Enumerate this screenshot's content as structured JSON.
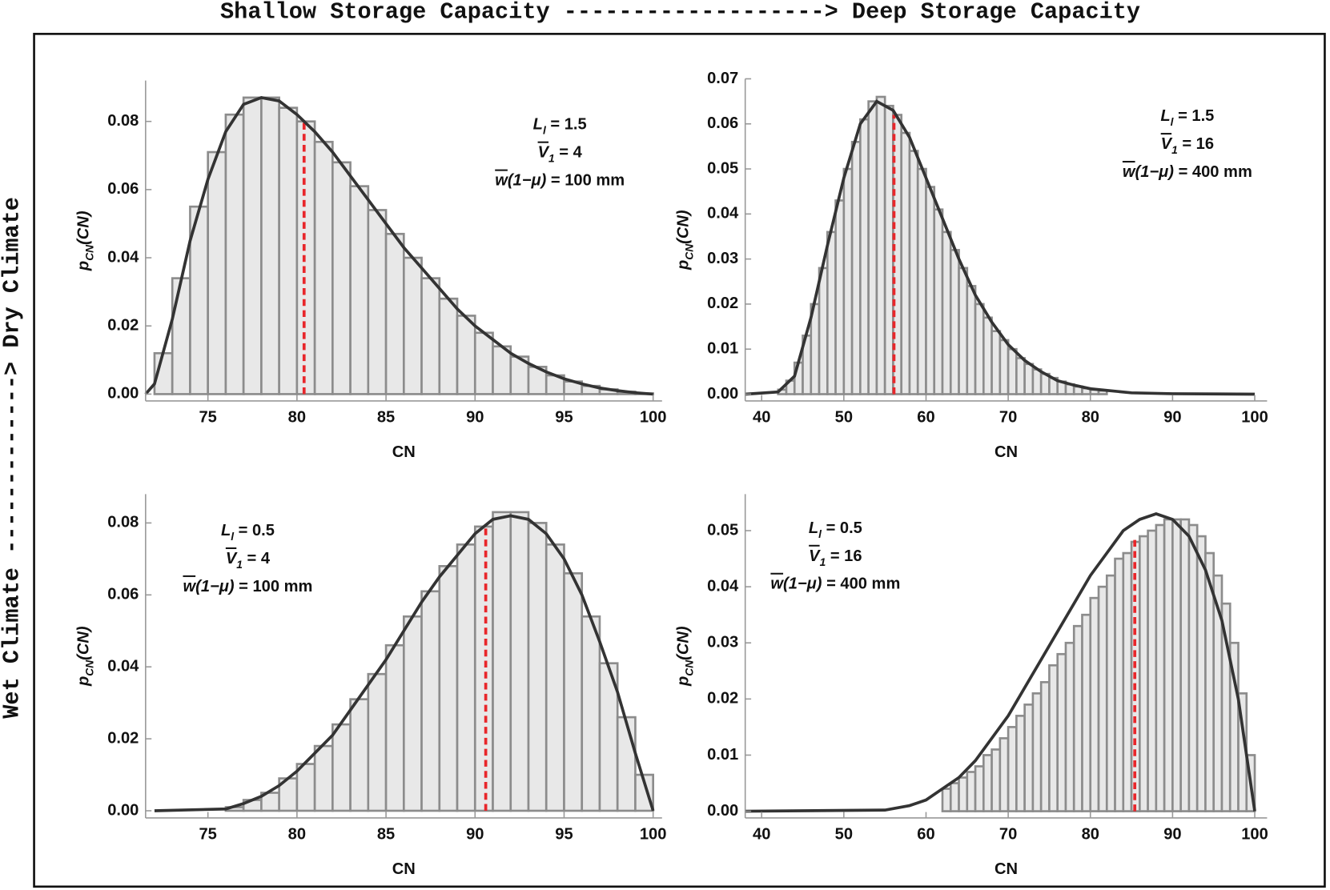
{
  "header": "Shallow Storage Capacity -------------------> Deep Storage Capacity",
  "side_label": "Wet Climate -------------> Dry Climate",
  "chart_data": [
    {
      "type": "histogram",
      "xlabel": "CN",
      "ylabel": [
        {
          "text": "p",
          "style": "i"
        },
        {
          "text": "CN",
          "style": "sub"
        },
        {
          "text": "(CN)",
          "style": "i"
        }
      ],
      "annotation": [
        [
          {
            "text": "L",
            "style": "i"
          },
          {
            "text": "l",
            "style": "sub"
          },
          {
            "text": " = 1.5",
            "style": "n"
          }
        ],
        [
          {
            "text": "V",
            "style": "bar"
          },
          {
            "text": "1",
            "style": "sub"
          },
          {
            "text": " = 4",
            "style": "n"
          }
        ],
        [
          {
            "text": "w",
            "style": "bar"
          },
          {
            "text": "(1−μ)",
            "style": "i"
          },
          {
            "text": " = 100 mm",
            "style": "n"
          }
        ]
      ],
      "xlim": [
        71.5,
        100.5
      ],
      "ylim": [
        -0.002,
        0.092
      ],
      "xticks": [
        75,
        80,
        85,
        90,
        95,
        100
      ],
      "yticks": [
        {
          "value": 0,
          "label": "0.00"
        },
        {
          "value": 0.02,
          "label": "0.02"
        },
        {
          "value": 0.04,
          "label": "0.04"
        },
        {
          "value": 0.06,
          "label": "0.06"
        },
        {
          "value": 0.08,
          "label": "0.08"
        }
      ],
      "bins": [
        72,
        73,
        74,
        75,
        76,
        77,
        78,
        79,
        80,
        81,
        82,
        83,
        84,
        85,
        86,
        87,
        88,
        89,
        90,
        91,
        92,
        93,
        94,
        95,
        96,
        97,
        98,
        99,
        100
      ],
      "values": [
        0.012,
        0.034,
        0.055,
        0.071,
        0.082,
        0.087,
        0.087,
        0.084,
        0.08,
        0.074,
        0.068,
        0.061,
        0.054,
        0.047,
        0.04,
        0.034,
        0.028,
        0.023,
        0.018,
        0.014,
        0.011,
        0.008,
        0.0055,
        0.0037,
        0.0024,
        0.0014,
        0.0007,
        0.0002
      ],
      "bar_color": "#e8e8e8",
      "edge_color": "#8c8c8c",
      "line_color": "#333333",
      "curve": {
        "x": [
          71.5,
          72,
          73,
          74,
          75,
          76,
          77,
          78,
          79,
          80,
          81,
          82,
          83,
          84,
          85,
          86,
          87,
          88,
          89,
          90,
          91,
          92,
          93,
          94,
          95,
          96,
          97,
          98,
          99,
          100
        ],
        "y": [
          0,
          0.003,
          0.022,
          0.045,
          0.063,
          0.077,
          0.085,
          0.087,
          0.086,
          0.082,
          0.077,
          0.071,
          0.064,
          0.057,
          0.05,
          0.043,
          0.037,
          0.031,
          0.025,
          0.02,
          0.016,
          0.012,
          0.009,
          0.0065,
          0.0045,
          0.003,
          0.0018,
          0.001,
          0.0004,
          0
        ]
      },
      "vline": {
        "x": 80.4,
        "y": 0.08,
        "color": "#e8262a"
      }
    },
    {
      "type": "histogram",
      "xlabel": "CN",
      "ylabel": [
        {
          "text": "p",
          "style": "i"
        },
        {
          "text": "CN",
          "style": "sub"
        },
        {
          "text": "(CN)",
          "style": "i"
        }
      ],
      "annotation": [
        [
          {
            "text": "L",
            "style": "i"
          },
          {
            "text": "l",
            "style": "sub"
          },
          {
            "text": " = 1.5",
            "style": "n"
          }
        ],
        [
          {
            "text": "V",
            "style": "bar"
          },
          {
            "text": "1",
            "style": "sub"
          },
          {
            "text": " = 16",
            "style": "n"
          }
        ],
        [
          {
            "text": "w",
            "style": "bar"
          },
          {
            "text": "(1−μ)",
            "style": "i"
          },
          {
            "text": " = 400 mm",
            "style": "n"
          }
        ]
      ],
      "xlim": [
        38,
        101.5
      ],
      "ylim": [
        -0.0015,
        0.07
      ],
      "xticks": [
        40,
        50,
        60,
        70,
        80,
        90,
        100
      ],
      "yticks": [
        {
          "value": 0,
          "label": "0.00"
        },
        {
          "value": 0.01,
          "label": "0.01"
        },
        {
          "value": 0.02,
          "label": "0.02"
        },
        {
          "value": 0.03,
          "label": "0.03"
        },
        {
          "value": 0.04,
          "label": "0.04"
        },
        {
          "value": 0.05,
          "label": "0.05"
        },
        {
          "value": 0.06,
          "label": "0.06"
        },
        {
          "value": 0.07,
          "label": "0.07"
        }
      ],
      "bins": [
        42,
        43,
        44,
        45,
        46,
        47,
        48,
        49,
        50,
        51,
        52,
        53,
        54,
        55,
        56,
        57,
        58,
        59,
        60,
        61,
        62,
        63,
        64,
        65,
        66,
        67,
        68,
        69,
        70,
        71,
        72,
        73,
        74,
        75,
        76,
        77,
        78,
        79,
        80,
        81,
        82
      ],
      "values": [
        0.001,
        0.003,
        0.007,
        0.013,
        0.02,
        0.028,
        0.036,
        0.043,
        0.05,
        0.056,
        0.061,
        0.065,
        0.066,
        0.064,
        0.062,
        0.058,
        0.054,
        0.05,
        0.046,
        0.041,
        0.036,
        0.032,
        0.028,
        0.024,
        0.02,
        0.017,
        0.014,
        0.012,
        0.01,
        0.008,
        0.0067,
        0.0055,
        0.0045,
        0.0036,
        0.0028,
        0.0022,
        0.0017,
        0.0013,
        0.001,
        0.0008
      ],
      "bar_color": "#e8e8e8",
      "edge_color": "#8c8c8c",
      "line_color": "#333333",
      "curve": {
        "x": [
          38,
          42,
          44,
          46,
          48,
          50,
          52,
          54,
          56,
          58,
          60,
          62,
          64,
          66,
          68,
          70,
          72,
          74,
          76,
          78,
          80,
          85,
          90,
          100
        ],
        "y": [
          0,
          0.0005,
          0.004,
          0.017,
          0.033,
          0.048,
          0.06,
          0.065,
          0.063,
          0.057,
          0.048,
          0.039,
          0.03,
          0.022,
          0.016,
          0.011,
          0.0075,
          0.005,
          0.003,
          0.002,
          0.0012,
          0.0003,
          0.0001,
          0
        ]
      },
      "vline": {
        "x": 56.1,
        "y": 0.062,
        "color": "#e8262a"
      }
    },
    {
      "type": "histogram",
      "xlabel": "CN",
      "ylabel": [
        {
          "text": "p",
          "style": "i"
        },
        {
          "text": "CN",
          "style": "sub"
        },
        {
          "text": "(CN)",
          "style": "i"
        }
      ],
      "annotation": [
        [
          {
            "text": "L",
            "style": "i"
          },
          {
            "text": "l",
            "style": "sub"
          },
          {
            "text": " = 0.5",
            "style": "n"
          }
        ],
        [
          {
            "text": "V",
            "style": "bar"
          },
          {
            "text": "1",
            "style": "sub"
          },
          {
            "text": " = 4",
            "style": "n"
          }
        ],
        [
          {
            "text": "w",
            "style": "bar"
          },
          {
            "text": "(1−μ)",
            "style": "i"
          },
          {
            "text": " = 100 mm",
            "style": "n"
          }
        ]
      ],
      "xlim": [
        71.5,
        100.5
      ],
      "ylim": [
        -0.002,
        0.088
      ],
      "xticks": [
        75,
        80,
        85,
        90,
        95,
        100
      ],
      "yticks": [
        {
          "value": 0,
          "label": "0.00"
        },
        {
          "value": 0.02,
          "label": "0.02"
        },
        {
          "value": 0.04,
          "label": "0.04"
        },
        {
          "value": 0.06,
          "label": "0.06"
        },
        {
          "value": 0.08,
          "label": "0.08"
        }
      ],
      "bins": [
        76,
        77,
        78,
        79,
        80,
        81,
        82,
        83,
        84,
        85,
        86,
        87,
        88,
        89,
        90,
        91,
        92,
        93,
        94,
        95,
        96,
        97,
        98,
        99,
        100
      ],
      "values": [
        0.001,
        0.003,
        0.005,
        0.009,
        0.013,
        0.018,
        0.024,
        0.031,
        0.038,
        0.046,
        0.054,
        0.061,
        0.068,
        0.074,
        0.079,
        0.083,
        0.083,
        0.08,
        0.074,
        0.066,
        0.054,
        0.041,
        0.026,
        0.01
      ],
      "bar_color": "#e8e8e8",
      "edge_color": "#8c8c8c",
      "line_color": "#333333",
      "curve": {
        "x": [
          72,
          76,
          77,
          78,
          79,
          80,
          81,
          82,
          83,
          84,
          85,
          86,
          87,
          88,
          89,
          90,
          91,
          92,
          93,
          94,
          95,
          96,
          97,
          98,
          99,
          100
        ],
        "y": [
          0,
          0.0005,
          0.002,
          0.004,
          0.007,
          0.011,
          0.016,
          0.021,
          0.028,
          0.035,
          0.042,
          0.05,
          0.058,
          0.065,
          0.071,
          0.077,
          0.081,
          0.082,
          0.081,
          0.077,
          0.07,
          0.06,
          0.047,
          0.033,
          0.016,
          0
        ]
      },
      "vline": {
        "x": 90.6,
        "y": 0.079,
        "color": "#e8262a"
      }
    },
    {
      "type": "histogram",
      "xlabel": "CN",
      "ylabel": [
        {
          "text": "p",
          "style": "i"
        },
        {
          "text": "CN",
          "style": "sub"
        },
        {
          "text": "(CN)",
          "style": "i"
        }
      ],
      "annotation": [
        [
          {
            "text": "L",
            "style": "i"
          },
          {
            "text": "l",
            "style": "sub"
          },
          {
            "text": " = 0.5",
            "style": "n"
          }
        ],
        [
          {
            "text": "V",
            "style": "bar"
          },
          {
            "text": "1",
            "style": "sub"
          },
          {
            "text": " = 16",
            "style": "n"
          }
        ],
        [
          {
            "text": "w",
            "style": "bar"
          },
          {
            "text": "(1−μ)",
            "style": "i"
          },
          {
            "text": " = 400 mm",
            "style": "n"
          }
        ]
      ],
      "xlim": [
        38,
        101.5
      ],
      "ylim": [
        -0.0012,
        0.0565
      ],
      "xticks": [
        40,
        50,
        60,
        70,
        80,
        90,
        100
      ],
      "yticks": [
        {
          "value": 0,
          "label": "0.00"
        },
        {
          "value": 0.01,
          "label": "0.01"
        },
        {
          "value": 0.02,
          "label": "0.02"
        },
        {
          "value": 0.03,
          "label": "0.03"
        },
        {
          "value": 0.04,
          "label": "0.04"
        },
        {
          "value": 0.05,
          "label": "0.05"
        }
      ],
      "bins": [
        62,
        63,
        64,
        65,
        66,
        67,
        68,
        69,
        70,
        71,
        72,
        73,
        74,
        75,
        76,
        77,
        78,
        79,
        80,
        81,
        82,
        83,
        84,
        85,
        86,
        87,
        88,
        89,
        90,
        91,
        92,
        93,
        94,
        95,
        96,
        97,
        98,
        99,
        100
      ],
      "values": [
        0.004,
        0.005,
        0.006,
        0.007,
        0.008,
        0.01,
        0.011,
        0.013,
        0.015,
        0.017,
        0.019,
        0.021,
        0.023,
        0.026,
        0.028,
        0.03,
        0.033,
        0.035,
        0.038,
        0.04,
        0.042,
        0.045,
        0.046,
        0.048,
        0.049,
        0.05,
        0.051,
        0.052,
        0.052,
        0.052,
        0.051,
        0.049,
        0.046,
        0.042,
        0.037,
        0.03,
        0.021,
        0.01
      ],
      "bar_color": "#e8e8e8",
      "edge_color": "#8c8c8c",
      "line_color": "#333333",
      "curve": {
        "x": [
          38,
          55,
          58,
          60,
          62,
          64,
          66,
          68,
          70,
          72,
          74,
          76,
          78,
          80,
          82,
          84,
          86,
          88,
          90,
          92,
          94,
          96,
          98,
          100
        ],
        "y": [
          0,
          0.0002,
          0.001,
          0.002,
          0.004,
          0.006,
          0.009,
          0.013,
          0.017,
          0.022,
          0.027,
          0.032,
          0.037,
          0.042,
          0.046,
          0.05,
          0.052,
          0.053,
          0.052,
          0.049,
          0.043,
          0.034,
          0.02,
          0
        ]
      },
      "vline": {
        "x": 85.4,
        "y": 0.049,
        "color": "#e8262a"
      }
    }
  ]
}
